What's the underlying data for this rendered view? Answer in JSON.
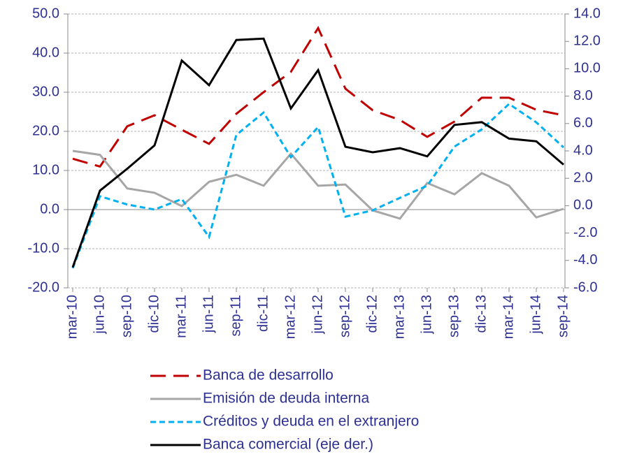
{
  "chart_data": {
    "type": "line",
    "categories": [
      "mar-10",
      "jun-10",
      "sep-10",
      "dic-10",
      "mar-11",
      "jun-11",
      "sep-11",
      "dic-11",
      "mar-12",
      "jun-12",
      "sep-12",
      "dic-12",
      "mar-13",
      "jun-13",
      "sep-13",
      "dic-13",
      "mar-14",
      "jun-14",
      "sep-14"
    ],
    "series": [
      {
        "name": "Banca de desarrollo",
        "color": "#c00000",
        "dash": "dashed",
        "values": [
          13,
          11,
          21.3,
          24.1,
          20.4,
          16.8,
          24.5,
          30,
          35.2,
          46.4,
          30.9,
          25.4,
          22.9,
          18.6,
          22.5,
          28.6,
          28.6,
          25.5,
          24.1
        ]
      },
      {
        "name": "Emisión de deuda interna",
        "color": "#a6a6a6",
        "dash": "solid",
        "values": [
          15,
          14,
          5.4,
          4.3,
          0.9,
          7.1,
          8.9,
          6.1,
          14.3,
          6.1,
          6.4,
          -0.2,
          -2.3,
          6.8,
          3.9,
          9.3,
          6.1,
          -2,
          0.2
        ]
      },
      {
        "name": "Créditos y deuda en el extranjero",
        "color": "#00b0f0",
        "dash": "dotted",
        "values": [
          -15,
          3.4,
          1.3,
          0,
          2.7,
          -7,
          19.1,
          24.8,
          13.4,
          21.1,
          -1.8,
          -0.2,
          3,
          6.1,
          16.1,
          20.5,
          27,
          22.3,
          15.9
        ]
      },
      {
        "name": "Banca comercial (eje der.)",
        "color": "#000000",
        "dash": "solid",
        "axis": "y2",
        "values": [
          -4.5,
          1.1,
          2.7,
          4.4,
          10.6,
          8.8,
          12.1,
          12.2,
          7.1,
          9.9,
          4.3,
          3.9,
          4.2,
          3.6,
          5.9,
          6.1,
          4.9,
          4.7,
          3
        ]
      }
    ],
    "ylim": [
      -20,
      50
    ],
    "yticks": [
      {
        "value": -20,
        "label": "-20.0"
      },
      {
        "value": -10,
        "label": "-10.0"
      },
      {
        "value": 0,
        "label": "0.0"
      },
      {
        "value": 10,
        "label": "10.0"
      },
      {
        "value": 20,
        "label": "20.0"
      },
      {
        "value": 30,
        "label": "30.0"
      },
      {
        "value": 40,
        "label": "40.0"
      },
      {
        "value": 50,
        "label": "50.0"
      }
    ],
    "y2lim": [
      -6,
      14
    ],
    "y2ticks": [
      {
        "value": -6,
        "label": "-6.0"
      },
      {
        "value": -4,
        "label": "-4.0"
      },
      {
        "value": -2,
        "label": "-2.0"
      },
      {
        "value": 0,
        "label": "0.0"
      },
      {
        "value": 2,
        "label": "2.0"
      },
      {
        "value": 4,
        "label": "4.0"
      },
      {
        "value": 6,
        "label": "6.0"
      },
      {
        "value": 8,
        "label": "8.0"
      },
      {
        "value": 10,
        "label": "10.0"
      },
      {
        "value": 12,
        "label": "12.0"
      },
      {
        "value": 14,
        "label": "14.0"
      }
    ],
    "grid": true
  }
}
